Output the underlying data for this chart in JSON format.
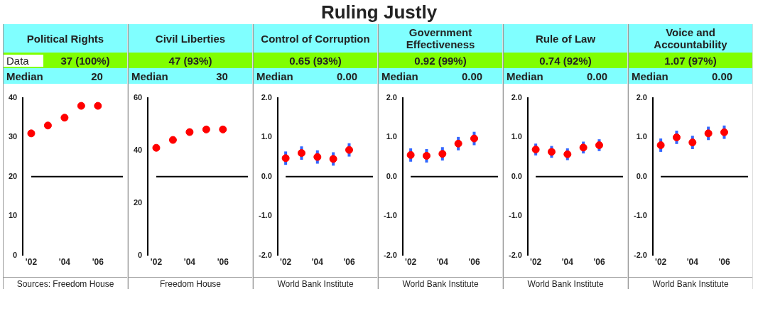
{
  "chart_data": [
    {
      "type": "other",
      "title": "Ruling Justly"
    },
    {
      "type": "scatter",
      "title": "Political Rights",
      "annotations": [
        "Data",
        "37 (100%)",
        "Median",
        "20",
        "Sources: Freedom House"
      ],
      "x": [
        2002,
        2003,
        2004,
        2005,
        2006
      ],
      "xlim": [
        2001.5,
        2007.5
      ],
      "xticks": [
        {
          "value": 2002,
          "label": "'02"
        },
        {
          "value": 2004,
          "label": "'04"
        },
        {
          "value": 2006,
          "label": "'06"
        }
      ],
      "ylim": [
        0,
        40
      ],
      "yticks": [
        0,
        10,
        20,
        30,
        40
      ],
      "series": [
        {
          "color": "#ff0000",
          "values": [
            31,
            33,
            35,
            38,
            38
          ]
        }
      ],
      "ref_lines": [
        {
          "axis": "y",
          "value": 20,
          "color": "#000000"
        }
      ],
      "marker": "circle",
      "grid": false
    },
    {
      "type": "scatter",
      "title": "Civil Liberties",
      "annotations": [
        "47 (93%)",
        "Median",
        "30",
        "Freedom House"
      ],
      "x": [
        2002,
        2003,
        2004,
        2005,
        2006
      ],
      "xlim": [
        2001.5,
        2007.5
      ],
      "xticks": [
        {
          "value": 2002,
          "label": "'02"
        },
        {
          "value": 2004,
          "label": "'04"
        },
        {
          "value": 2006,
          "label": "'06"
        }
      ],
      "ylim": [
        0,
        60
      ],
      "yticks": [
        0,
        20,
        40,
        60
      ],
      "series": [
        {
          "color": "#ff0000",
          "values": [
            41,
            44,
            47,
            48,
            48
          ]
        }
      ],
      "ref_lines": [
        {
          "axis": "y",
          "value": 30,
          "color": "#000000"
        }
      ],
      "marker": "circle",
      "grid": false
    },
    {
      "type": "scatter",
      "title": "Control of Corruption",
      "annotations": [
        "0.65 (93%)",
        "Median",
        "0.00",
        "World Bank Institute"
      ],
      "x": [
        2002,
        2003,
        2004,
        2005,
        2006
      ],
      "xlim": [
        2001.5,
        2007.5
      ],
      "xticks": [
        {
          "value": 2002,
          "label": "'02"
        },
        {
          "value": 2004,
          "label": "'04"
        },
        {
          "value": 2006,
          "label": "'06"
        }
      ],
      "ylim": [
        -2,
        2
      ],
      "yticks": [
        {
          "value": -2,
          "label": "-2.0"
        },
        {
          "value": -1,
          "label": "-1.0"
        },
        {
          "value": 0,
          "label": "0.0"
        },
        {
          "value": 1,
          "label": "1.0"
        },
        {
          "value": 2,
          "label": "2.0"
        }
      ],
      "series": [
        {
          "color": "#ff0000",
          "values": [
            0.47,
            0.6,
            0.5,
            0.45,
            0.68
          ],
          "errors": [
            0.17,
            0.17,
            0.17,
            0.17,
            0.17
          ]
        }
      ],
      "ref_lines": [
        {
          "axis": "y",
          "value": 0,
          "color": "#000000"
        }
      ],
      "marker": "circle",
      "grid": false
    },
    {
      "type": "scatter",
      "title": "Government Effectiveness",
      "annotations": [
        "0.92 (99%)",
        "Median",
        "0.00",
        "World Bank Institute"
      ],
      "x": [
        2002,
        2003,
        2004,
        2005,
        2006
      ],
      "xlim": [
        2001.5,
        2007.5
      ],
      "xticks": [
        {
          "value": 2002,
          "label": "'02"
        },
        {
          "value": 2004,
          "label": "'04"
        },
        {
          "value": 2006,
          "label": "'06"
        }
      ],
      "ylim": [
        -2,
        2
      ],
      "yticks": [
        {
          "value": -2,
          "label": "-2.0"
        },
        {
          "value": -1,
          "label": "-1.0"
        },
        {
          "value": 0,
          "label": "0.0"
        },
        {
          "value": 1,
          "label": "1.0"
        },
        {
          "value": 2,
          "label": "2.0"
        }
      ],
      "series": [
        {
          "color": "#ff0000",
          "values": [
            0.55,
            0.53,
            0.58,
            0.84,
            0.97
          ],
          "errors": [
            0.17,
            0.17,
            0.17,
            0.17,
            0.17
          ]
        }
      ],
      "ref_lines": [
        {
          "axis": "y",
          "value": 0,
          "color": "#000000"
        }
      ],
      "marker": "circle",
      "grid": false
    },
    {
      "type": "scatter",
      "title": "Rule of Law",
      "annotations": [
        "0.74 (92%)",
        "Median",
        "0.00",
        "World Bank Institute"
      ],
      "x": [
        2002,
        2003,
        2004,
        2005,
        2006
      ],
      "xlim": [
        2001.5,
        2007.5
      ],
      "xticks": [
        {
          "value": 2002,
          "label": "'02"
        },
        {
          "value": 2004,
          "label": "'04"
        },
        {
          "value": 2006,
          "label": "'06"
        }
      ],
      "ylim": [
        -2,
        2
      ],
      "yticks": [
        {
          "value": -2,
          "label": "-2.0"
        },
        {
          "value": -1,
          "label": "-1.0"
        },
        {
          "value": 0,
          "label": "0.0"
        },
        {
          "value": 1,
          "label": "1.0"
        },
        {
          "value": 2,
          "label": "2.0"
        }
      ],
      "series": [
        {
          "color": "#ff0000",
          "values": [
            0.69,
            0.63,
            0.57,
            0.74,
            0.8
          ],
          "errors": [
            0.15,
            0.15,
            0.15,
            0.15,
            0.15
          ]
        }
      ],
      "ref_lines": [
        {
          "axis": "y",
          "value": 0,
          "color": "#000000"
        }
      ],
      "marker": "circle",
      "grid": false
    },
    {
      "type": "scatter",
      "title": "Voice and Accountability",
      "annotations": [
        "1.07 (97%)",
        "Median",
        "0.00",
        "World Bank Institute"
      ],
      "x": [
        2002,
        2003,
        2004,
        2005,
        2006
      ],
      "xlim": [
        2001.5,
        2007.5
      ],
      "xticks": [
        {
          "value": 2002,
          "label": "'02"
        },
        {
          "value": 2004,
          "label": "'04"
        },
        {
          "value": 2006,
          "label": "'06"
        }
      ],
      "ylim": [
        -2,
        2
      ],
      "yticks": [
        {
          "value": -2,
          "label": "-2.0"
        },
        {
          "value": -1,
          "label": "-1.0"
        },
        {
          "value": 0,
          "label": "0.0"
        },
        {
          "value": 1,
          "label": "1.0"
        },
        {
          "value": 2,
          "label": "2.0"
        }
      ],
      "series": [
        {
          "color": "#ff0000",
          "values": [
            0.8,
            1.0,
            0.87,
            1.1,
            1.13
          ],
          "errors": [
            0.17,
            0.17,
            0.17,
            0.17,
            0.17
          ]
        }
      ],
      "ref_lines": [
        {
          "axis": "y",
          "value": 0,
          "color": "#000000"
        }
      ],
      "marker": "circle",
      "grid": false
    }
  ]
}
